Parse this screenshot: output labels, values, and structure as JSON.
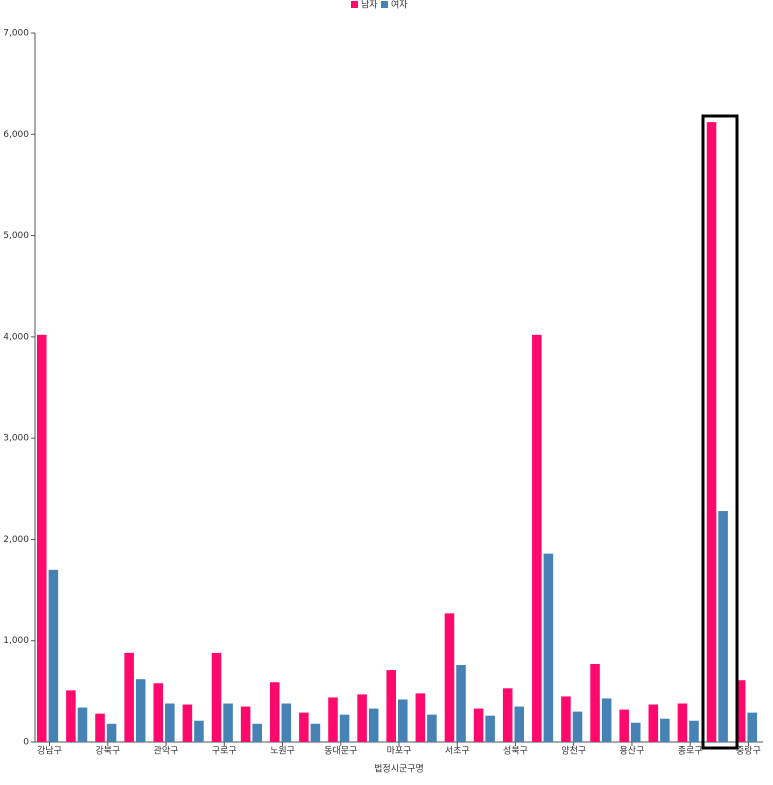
{
  "chart_data": {
    "type": "bar",
    "x_label": "법정시군구명",
    "categories": [
      "강남구",
      null,
      "강북구",
      null,
      "관악구",
      null,
      "구로구",
      null,
      "노원구",
      null,
      "동대문구",
      null,
      "마포구",
      null,
      "서초구",
      null,
      "성북구",
      null,
      "양천구",
      null,
      "용산구",
      null,
      "종로구",
      null,
      "중랑구"
    ],
    "series": [
      {
        "name": "남자",
        "color": "#ff0a6c",
        "values": [
          4020,
          510,
          280,
          880,
          580,
          370,
          880,
          350,
          590,
          290,
          440,
          470,
          710,
          480,
          1270,
          330,
          530,
          4020,
          450,
          770,
          320,
          370,
          380,
          6120,
          610
        ]
      },
      {
        "name": "여자",
        "color": "#4682b4",
        "values": [
          1700,
          340,
          180,
          620,
          380,
          210,
          380,
          180,
          380,
          180,
          270,
          330,
          420,
          270,
          760,
          260,
          350,
          1860,
          300,
          430,
          190,
          230,
          210,
          2280,
          290
        ]
      }
    ],
    "ylim": [
      0,
      7000
    ],
    "yticks": [
      0,
      {
        "value": 1000,
        "label": "1,000"
      },
      {
        "value": 2000,
        "label": "2,000"
      },
      {
        "value": 3000,
        "label": "3,000"
      },
      {
        "value": 4000,
        "label": "4,000"
      },
      {
        "value": 5000,
        "label": "5,000"
      },
      {
        "value": 6000,
        "label": "6,000"
      },
      {
        "value": 7000,
        "label": "7,000"
      }
    ]
  }
}
